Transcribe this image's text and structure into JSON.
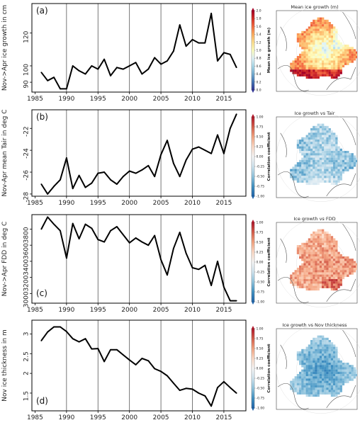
{
  "chart_data": [
    {
      "type": "line",
      "panel_label": "(a)",
      "ylabel": "Nov->Apr ice growth in cm",
      "xlim": [
        1984.5,
        2018.5
      ],
      "ylim": [
        84,
        138
      ],
      "yticks": [
        90,
        100,
        120
      ],
      "xticks": [
        1985,
        1990,
        1995,
        2000,
        2005,
        2010,
        2015
      ],
      "vlines": [
        1990,
        1995,
        2000,
        2005,
        2010,
        2015
      ],
      "x": [
        1986,
        1987,
        1988,
        1989,
        1990,
        1991,
        1992,
        1993,
        1994,
        1995,
        1996,
        1997,
        1998,
        1999,
        2000,
        2001,
        2002,
        2003,
        2004,
        2005,
        2006,
        2007,
        2008,
        2009,
        2010,
        2011,
        2012,
        2013,
        2014,
        2015,
        2016,
        2017
      ],
      "y": [
        96,
        91,
        93,
        86,
        86,
        100,
        97,
        95,
        100,
        98,
        104,
        94,
        99,
        98,
        100,
        102,
        95,
        98,
        105,
        101,
        103,
        109,
        125,
        112,
        116,
        114,
        114,
        132,
        103,
        108,
        107,
        99
      ]
    },
    {
      "type": "line",
      "panel_label": "(b)",
      "ylabel": "Nov-Apr mean Tair in deg C",
      "xlim": [
        1984.5,
        2018.5
      ],
      "ylim": [
        -28.2,
        -20.3
      ],
      "yticks": [
        -28,
        -26,
        -24,
        -22
      ],
      "xticks": [
        1985,
        1990,
        1995,
        2000,
        2005,
        2010,
        2015
      ],
      "vlines": [
        1990,
        1995,
        2000,
        2005,
        2010,
        2015
      ],
      "x": [
        1986,
        1987,
        1988,
        1989,
        1990,
        1991,
        1992,
        1993,
        1994,
        1995,
        1996,
        1997,
        1998,
        1999,
        2000,
        2001,
        2002,
        2003,
        2004,
        2005,
        2006,
        2007,
        2008,
        2009,
        2010,
        2011,
        2012,
        2013,
        2014,
        2015,
        2016,
        2017
      ],
      "y": [
        -27.1,
        -28.0,
        -27.3,
        -26.7,
        -24.7,
        -27.5,
        -26.3,
        -27.4,
        -27.0,
        -26.1,
        -26.0,
        -26.7,
        -27.1,
        -26.4,
        -25.9,
        -26.1,
        -25.8,
        -25.4,
        -26.4,
        -24.4,
        -23.1,
        -25.2,
        -26.4,
        -24.9,
        -23.9,
        -23.7,
        -24.0,
        -24.3,
        -22.6,
        -24.3,
        -22.0,
        -20.7
      ]
    },
    {
      "type": "line",
      "panel_label": "(c)",
      "ylabel": "Nov->Apr FDD in deg C",
      "xlim": [
        1984.5,
        2018.5
      ],
      "ylim": [
        2880,
        3980
      ],
      "yticks": [
        3000,
        3200,
        3400,
        3600,
        3800
      ],
      "xticks": [
        1985,
        1990,
        1995,
        2000,
        2005,
        2010,
        2015
      ],
      "vlines": [
        1990,
        1995,
        2000,
        2005,
        2010,
        2015
      ],
      "x": [
        1986,
        1987,
        1988,
        1989,
        1990,
        1991,
        1992,
        1993,
        1994,
        1995,
        1996,
        1997,
        1998,
        1999,
        2000,
        2001,
        2002,
        2003,
        2004,
        2005,
        2006,
        2007,
        2008,
        2009,
        2010,
        2011,
        2012,
        2013,
        2014,
        2015,
        2016,
        2017
      ],
      "y": [
        3800,
        3950,
        3860,
        3780,
        3440,
        3870,
        3680,
        3860,
        3810,
        3670,
        3640,
        3780,
        3830,
        3730,
        3630,
        3690,
        3640,
        3600,
        3720,
        3420,
        3230,
        3560,
        3760,
        3500,
        3320,
        3300,
        3350,
        3100,
        3400,
        3080,
        2910,
        2910
      ]
    },
    {
      "type": "line",
      "panel_label": "(d)",
      "ylabel": "Nov ice thickness in m",
      "xlim": [
        1984.5,
        2018.5
      ],
      "ylim": [
        1.05,
        3.35
      ],
      "yticks": [
        1.5,
        2.0,
        2.5,
        3.0
      ],
      "xticks": [
        1985,
        1990,
        1995,
        2000,
        2005,
        2010,
        2015
      ],
      "vlines": [
        1990,
        1995,
        2000,
        2005,
        2010,
        2015
      ],
      "x": [
        1986,
        1987,
        1988,
        1989,
        1990,
        1991,
        1992,
        1993,
        1994,
        1995,
        1996,
        1997,
        1998,
        1999,
        2000,
        2001,
        2002,
        2003,
        2004,
        2005,
        2006,
        2007,
        2008,
        2009,
        2010,
        2011,
        2012,
        2013,
        2014,
        2015,
        2016,
        2017
      ],
      "y": [
        2.83,
        3.05,
        3.18,
        3.18,
        3.06,
        2.88,
        2.8,
        2.88,
        2.62,
        2.63,
        2.3,
        2.6,
        2.6,
        2.47,
        2.34,
        2.22,
        2.38,
        2.32,
        2.12,
        2.05,
        1.94,
        1.75,
        1.57,
        1.62,
        1.6,
        1.5,
        1.43,
        1.17,
        1.64,
        1.79,
        1.64,
        1.5
      ]
    }
  ],
  "maps": [
    {
      "title": "Mean ice growth (m)",
      "colorbar_label": "Mean ice growth (m)",
      "colorbar_ticks": [
        "2.0",
        "1.8",
        "1.6",
        "1.4",
        "1.2",
        "1.0",
        "0.8",
        "0.6",
        "0.4",
        "0.2",
        "0.0"
      ],
      "colormap": "rdylbu",
      "field": "growth"
    },
    {
      "title": "Ice growth vs Tair",
      "colorbar_label": "Correlation coefficient",
      "colorbar_ticks": [
        "1.00",
        "0.75",
        "0.50",
        "0.25",
        "0.00",
        "-0.25",
        "-0.50",
        "-0.75",
        "-1.00"
      ],
      "colormap": "rdbu",
      "field": "tair"
    },
    {
      "title": "Ice growth vs FDD",
      "colorbar_label": "Correlation coefficient",
      "colorbar_ticks": [
        "1.00",
        "0.75",
        "0.50",
        "0.25",
        "0.00",
        "-0.25",
        "-0.50",
        "-0.75",
        "-1.00"
      ],
      "colormap": "rdbu",
      "field": "fdd"
    },
    {
      "title": "Ice growth vs Nov thickness",
      "colorbar_label": "Correlation coefficient",
      "colorbar_ticks": [
        "1.00",
        "0.75",
        "0.50",
        "0.25",
        "0.00",
        "-0.25",
        "-0.50",
        "-0.75",
        "-1.00"
      ],
      "colormap": "rdbu",
      "field": "thick"
    }
  ],
  "colors": {
    "line": "#000000",
    "axis": "#000000",
    "land": "#ffffff",
    "coast": "#555555",
    "rdbu": [
      "#b2182b",
      "#d6604d",
      "#f4a582",
      "#fddbc7",
      "#f7f7f7",
      "#d1e5f0",
      "#92c5de",
      "#4393c3",
      "#2166ac"
    ],
    "rdylbu": [
      "#a50026",
      "#d73027",
      "#f46d43",
      "#fdae61",
      "#fee090",
      "#ffffbf",
      "#e0f3f8",
      "#abd9e9",
      "#74add1",
      "#4575b4",
      "#313695"
    ]
  }
}
